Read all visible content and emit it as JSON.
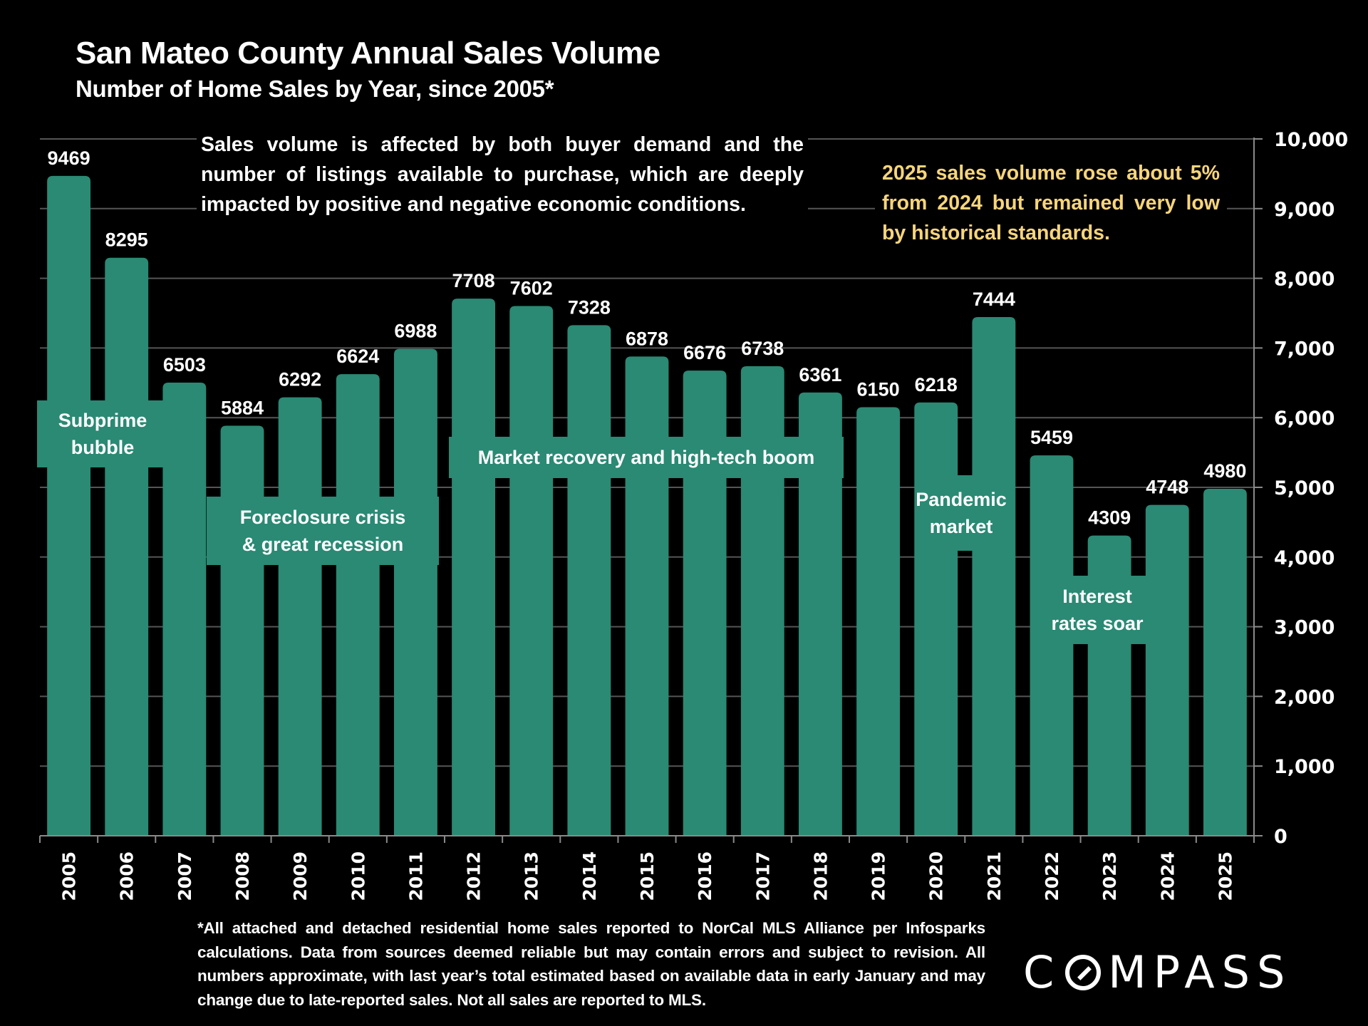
{
  "header": {
    "title": "San Mateo County Annual Sales Volume",
    "subtitle": "Number of Home Sales by Year, since 2005*"
  },
  "notes": {
    "left": "Sales volume is affected by both buyer demand and the number of listings available to purchase, which are deeply impacted by positive and negative economic conditions.",
    "right": "2025 sales volume rose about 5% from 2024 but remained very low by historical standards.",
    "right_color": "#f7d57a"
  },
  "annotations": [
    {
      "label": "Subprime bubble",
      "line1": "Subprime",
      "line2": "bubble"
    },
    {
      "label": "Foreclosure crisis & great recession",
      "line1": "Foreclosure crisis",
      "line2": "& great recession"
    },
    {
      "label": "Market recovery and high-tech boom",
      "line1": "Market recovery and high-tech boom",
      "line2": ""
    },
    {
      "label": "Pandemic market",
      "line1": "Pandemic",
      "line2": "market"
    },
    {
      "label": "Interest rates soar",
      "line1": "Interest",
      "line2": "rates soar"
    }
  ],
  "footnote": "*All attached and detached residential home sales reported to NorCal MLS Alliance per Infosparks calculations. Data from sources deemed reliable but may contain errors and subject to revision. All numbers approximate, with last year’s total estimated based on available data in early January and may change due to late-reported sales. Not all sales are reported to MLS.",
  "brand": {
    "logo_text_c": "C",
    "logo_text_rest": "MPASS",
    "name": "COMPASS"
  },
  "colors": {
    "bar": "#2a8a74",
    "background": "#000000",
    "gridline": "#555555",
    "axis": "#8a8a8a",
    "highlight_text": "#f7d57a"
  },
  "chart_data": {
    "type": "bar",
    "title": "San Mateo County Annual Sales Volume",
    "subtitle": "Number of Home Sales by Year, since 2005*",
    "xlabel": "",
    "ylabel": "",
    "categories": [
      "2005",
      "2006",
      "2007",
      "2008",
      "2009",
      "2010",
      "2011",
      "2012",
      "2013",
      "2014",
      "2015",
      "2016",
      "2017",
      "2018",
      "2019",
      "2020",
      "2021",
      "2022",
      "2023",
      "2024",
      "2025"
    ],
    "values": [
      9469,
      8295,
      6503,
      5884,
      6292,
      6624,
      6988,
      7708,
      7602,
      7328,
      6878,
      6676,
      6738,
      6361,
      6150,
      6218,
      7444,
      5459,
      4309,
      4748,
      4980
    ],
    "data_labels": [
      "9469",
      "8295",
      "6503",
      "5884",
      "6292",
      "6624",
      "6988",
      "7708",
      "7602",
      "7328",
      "6878",
      "6676",
      "6738",
      "6361",
      "6150",
      "6218",
      "7444",
      "5459",
      "4309",
      "4748",
      "4980"
    ],
    "ylim": [
      0,
      10000
    ],
    "yticks": [
      0,
      1000,
      2000,
      3000,
      4000,
      5000,
      6000,
      7000,
      8000,
      9000,
      10000
    ],
    "ytick_labels": [
      "0",
      "1,000",
      "2,000",
      "3,000",
      "4,000",
      "5,000",
      "6,000",
      "7,000",
      "8,000",
      "9,000",
      "10,000"
    ],
    "y_axis_side": "right",
    "x_tick_rotation": "vertical",
    "grid": true,
    "legend": "none"
  }
}
